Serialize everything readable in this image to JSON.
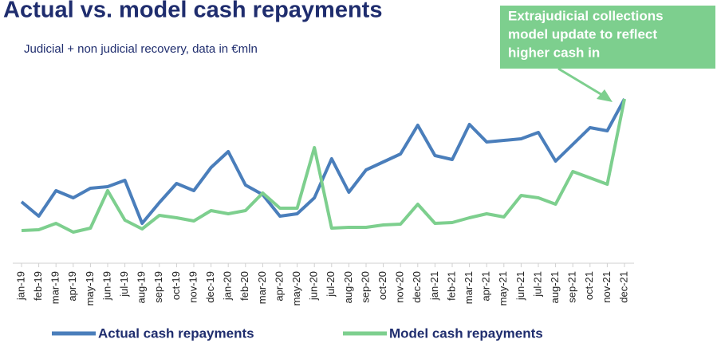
{
  "chart_data": {
    "type": "line",
    "title": "Actual vs. model cash repayments",
    "subtitle": "Judicial + non judicial recovery, data in €mln",
    "annotation": [
      "Extrajudicial collections",
      "model update to reflect",
      "higher cash in"
    ],
    "categories": [
      "jan-19",
      "feb-19",
      "mar-19",
      "apr-19",
      "may-19",
      "jun-19",
      "jul-19",
      "aug-19",
      "sep-19",
      "oct-19",
      "nov-19",
      "dec-19",
      "jan-20",
      "feb-20",
      "mar-20",
      "apr-20",
      "may-20",
      "jun-20",
      "jul-20",
      "aug-20",
      "sep-20",
      "oct-20",
      "nov-20",
      "dec-20",
      "jan-21",
      "feb-21",
      "mar-21",
      "apr-21",
      "may-21",
      "jun-21",
      "jul-21",
      "aug-21",
      "sep-21",
      "oct-21",
      "nov-21",
      "dec-21"
    ],
    "series": [
      {
        "name": "Actual cash repayments",
        "color": "#4a7ebb",
        "values": [
          77,
          59,
          91,
          82,
          94,
          96,
          104,
          50,
          76,
          100,
          91,
          120,
          140,
          98,
          86,
          59,
          62,
          82,
          131,
          89,
          117,
          127,
          137,
          173,
          135,
          130,
          174,
          152,
          154,
          156,
          164,
          128,
          149,
          170,
          166,
          206
        ]
      },
      {
        "name": "Model cash repayments",
        "color": "#7dcf8e",
        "values": [
          41,
          42,
          50,
          39,
          44,
          91,
          54,
          43,
          60,
          57,
          53,
          66,
          62,
          66,
          88,
          69,
          69,
          145,
          44,
          45,
          45,
          48,
          49,
          74,
          50,
          51,
          57,
          62,
          58,
          85,
          82,
          74,
          115,
          107,
          99,
          206
        ]
      }
    ],
    "ylim": [
      0,
      220
    ]
  }
}
